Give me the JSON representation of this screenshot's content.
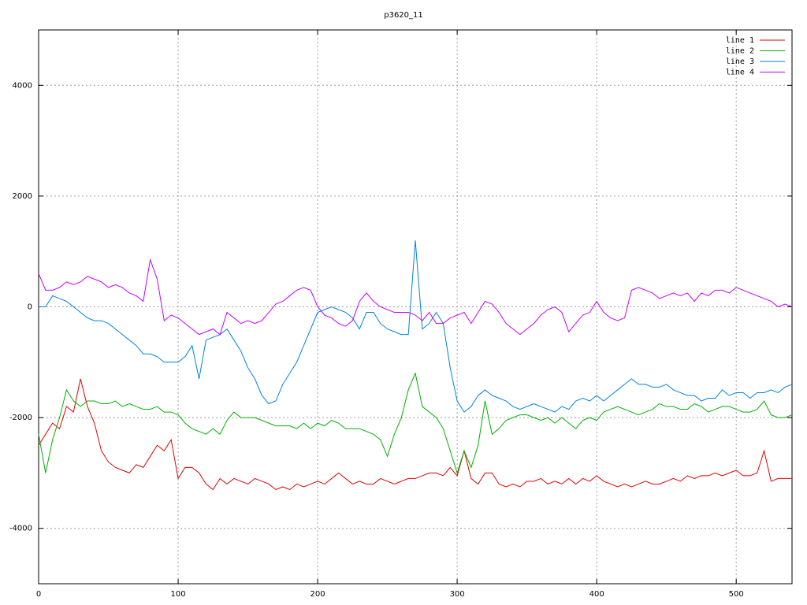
{
  "chart_data": {
    "type": "line",
    "title": "p3620_11",
    "x": [
      0,
      5,
      10,
      15,
      20,
      25,
      30,
      35,
      40,
      45,
      50,
      55,
      60,
      65,
      70,
      75,
      80,
      85,
      90,
      95,
      100,
      105,
      110,
      115,
      120,
      125,
      130,
      135,
      140,
      145,
      150,
      155,
      160,
      165,
      170,
      175,
      180,
      185,
      190,
      195,
      200,
      205,
      210,
      215,
      220,
      225,
      230,
      235,
      240,
      245,
      250,
      255,
      260,
      265,
      270,
      275,
      280,
      285,
      290,
      295,
      300,
      305,
      310,
      315,
      320,
      325,
      330,
      335,
      340,
      345,
      350,
      355,
      360,
      365,
      370,
      375,
      380,
      385,
      390,
      395,
      400,
      405,
      410,
      415,
      420,
      425,
      430,
      435,
      440,
      445,
      450,
      455,
      460,
      465,
      470,
      475,
      480,
      485,
      490,
      495,
      500,
      505,
      510,
      515,
      520,
      525,
      530,
      535,
      540
    ],
    "series": [
      {
        "name": "line 1",
        "color": "#e00000",
        "values": [
          -2500,
          -2300,
          -2100,
          -2200,
          -1800,
          -1900,
          -1300,
          -1800,
          -2100,
          -2600,
          -2800,
          -2900,
          -2950,
          -3000,
          -2850,
          -2900,
          -2700,
          -2500,
          -2600,
          -2400,
          -3100,
          -2900,
          -2900,
          -3000,
          -3200,
          -3300,
          -3100,
          -3200,
          -3100,
          -3150,
          -3200,
          -3100,
          -3150,
          -3200,
          -3300,
          -3250,
          -3300,
          -3200,
          -3250,
          -3200,
          -3150,
          -3200,
          -3100,
          -3000,
          -3100,
          -3200,
          -3150,
          -3200,
          -3200,
          -3100,
          -3150,
          -3200,
          -3150,
          -3100,
          -3100,
          -3050,
          -3000,
          -3000,
          -3050,
          -2900,
          -3050,
          -2600,
          -3100,
          -3200,
          -3000,
          -3000,
          -3200,
          -3250,
          -3200,
          -3250,
          -3150,
          -3150,
          -3100,
          -3200,
          -3150,
          -3200,
          -3100,
          -3200,
          -3100,
          -3150,
          -3050,
          -3150,
          -3200,
          -3250,
          -3200,
          -3250,
          -3200,
          -3150,
          -3200,
          -3200,
          -3150,
          -3100,
          -3150,
          -3050,
          -3100,
          -3050,
          -3050,
          -3000,
          -3050,
          -3000,
          -2950,
          -3050,
          -3050,
          -3000,
          -2600,
          -3150,
          -3100,
          -3100,
          -3100
        ]
      },
      {
        "name": "line 2",
        "color": "#00b000",
        "values": [
          -2300,
          -3000,
          -2400,
          -2000,
          -1500,
          -1700,
          -1800,
          -1700,
          -1700,
          -1750,
          -1750,
          -1700,
          -1800,
          -1750,
          -1800,
          -1850,
          -1850,
          -1800,
          -1900,
          -1900,
          -1950,
          -2100,
          -2200,
          -2250,
          -2300,
          -2200,
          -2300,
          -2050,
          -1900,
          -2000,
          -2000,
          -2000,
          -2050,
          -2100,
          -2150,
          -2150,
          -2150,
          -2200,
          -2100,
          -2200,
          -2100,
          -2150,
          -2050,
          -2100,
          -2200,
          -2200,
          -2200,
          -2250,
          -2300,
          -2400,
          -2700,
          -2300,
          -2000,
          -1500,
          -1200,
          -1800,
          -1900,
          -2000,
          -2200,
          -2600,
          -3000,
          -2600,
          -2900,
          -2500,
          -1700,
          -2300,
          -2200,
          -2050,
          -2000,
          -1950,
          -1950,
          -2000,
          -2050,
          -2000,
          -2100,
          -2000,
          -2100,
          -2200,
          -2050,
          -2000,
          -2050,
          -1900,
          -1850,
          -1800,
          -1850,
          -1900,
          -1950,
          -1900,
          -1850,
          -1750,
          -1800,
          -1800,
          -1850,
          -1850,
          -1750,
          -1800,
          -1900,
          -1850,
          -1800,
          -1800,
          -1850,
          -1900,
          -1900,
          -1850,
          -1700,
          -1950,
          -2000,
          -2000,
          -1950
        ]
      },
      {
        "name": "line 3",
        "color": "#0080e0",
        "values": [
          0,
          0,
          200,
          150,
          100,
          0,
          -100,
          -200,
          -250,
          -250,
          -300,
          -400,
          -500,
          -600,
          -700,
          -850,
          -850,
          -900,
          -1000,
          -1000,
          -1000,
          -900,
          -700,
          -1300,
          -600,
          -550,
          -500,
          -400,
          -600,
          -800,
          -1100,
          -1300,
          -1600,
          -1750,
          -1700,
          -1400,
          -1200,
          -1000,
          -700,
          -400,
          -100,
          -50,
          0,
          -50,
          -100,
          -200,
          -400,
          -100,
          -100,
          -300,
          -400,
          -450,
          -500,
          -500,
          1200,
          -400,
          -300,
          -100,
          -300,
          -1100,
          -1700,
          -1900,
          -1800,
          -1600,
          -1500,
          -1600,
          -1650,
          -1700,
          -1800,
          -1850,
          -1800,
          -1750,
          -1800,
          -1850,
          -1900,
          -1800,
          -1850,
          -1700,
          -1650,
          -1700,
          -1600,
          -1700,
          -1600,
          -1500,
          -1400,
          -1300,
          -1400,
          -1400,
          -1450,
          -1450,
          -1400,
          -1500,
          -1550,
          -1600,
          -1600,
          -1700,
          -1650,
          -1650,
          -1500,
          -1600,
          -1550,
          -1550,
          -1650,
          -1550,
          -1550,
          -1500,
          -1550,
          -1450,
          -1400
        ]
      },
      {
        "name": "line 4",
        "color": "#c000ff",
        "values": [
          600,
          300,
          300,
          350,
          450,
          400,
          450,
          550,
          500,
          450,
          350,
          400,
          350,
          250,
          200,
          100,
          850,
          500,
          -250,
          -150,
          -200,
          -300,
          -400,
          -500,
          -450,
          -400,
          -500,
          -100,
          -200,
          -300,
          -250,
          -300,
          -250,
          -100,
          50,
          100,
          200,
          300,
          350,
          300,
          0,
          -150,
          -200,
          -300,
          -350,
          -250,
          100,
          250,
          100,
          0,
          -50,
          -100,
          -100,
          -100,
          -150,
          -250,
          -100,
          -300,
          -300,
          -200,
          -150,
          -100,
          -300,
          -100,
          100,
          50,
          -100,
          -300,
          -400,
          -500,
          -400,
          -300,
          -150,
          -50,
          0,
          -100,
          -450,
          -300,
          -150,
          -100,
          100,
          -100,
          -200,
          -250,
          -200,
          300,
          350,
          300,
          250,
          150,
          200,
          250,
          200,
          250,
          100,
          250,
          200,
          300,
          300,
          250,
          350,
          300,
          250,
          200,
          150,
          100,
          0,
          50,
          0
        ]
      }
    ],
    "xlim": [
      0,
      540
    ],
    "xticks": [
      0,
      100,
      200,
      300,
      400,
      500
    ],
    "ylim": [
      -5000,
      5000
    ],
    "yticks": [
      -4000,
      -2000,
      0,
      2000,
      4000
    ],
    "grid": true,
    "legend": "top-right"
  }
}
